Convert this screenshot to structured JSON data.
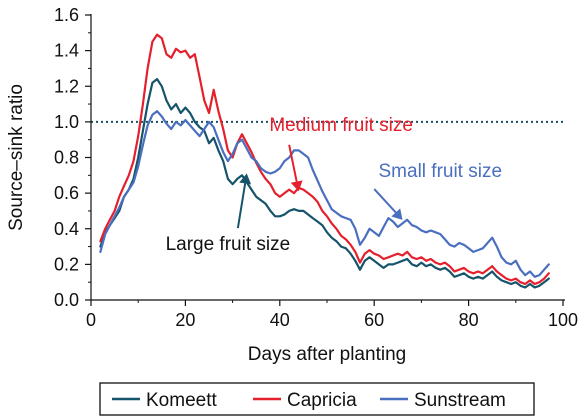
{
  "chart_data": {
    "type": "line",
    "xlabel": "Days after planting",
    "ylabel": "Source–sink ratio",
    "xlim": [
      0,
      100
    ],
    "ylim": [
      0,
      1.6
    ],
    "xticks": [
      "0",
      "20",
      "40",
      "60",
      "80",
      "100"
    ],
    "yticks": [
      "0.0",
      "0.2",
      "0.4",
      "0.6",
      "0.8",
      "1.0",
      "1.2",
      "1.4",
      "1.6"
    ],
    "reference_line": {
      "y": 1.0,
      "style": "dotted",
      "color": "#1a4f66"
    },
    "series": [
      {
        "name": "Komeett",
        "color": "#15546a",
        "points": [
          [
            2,
            0.3
          ],
          [
            3,
            0.38
          ],
          [
            4,
            0.42
          ],
          [
            5,
            0.46
          ],
          [
            6,
            0.5
          ],
          [
            7,
            0.58
          ],
          [
            8,
            0.62
          ],
          [
            9,
            0.68
          ],
          [
            10,
            0.8
          ],
          [
            11,
            0.95
          ],
          [
            12,
            1.1
          ],
          [
            13,
            1.22
          ],
          [
            14,
            1.24
          ],
          [
            15,
            1.2
          ],
          [
            16,
            1.12
          ],
          [
            17,
            1.07
          ],
          [
            18,
            1.1
          ],
          [
            19,
            1.05
          ],
          [
            20,
            1.08
          ],
          [
            21,
            1.05
          ],
          [
            22,
            1.0
          ],
          [
            23,
            0.97
          ],
          [
            24,
            0.95
          ],
          [
            25,
            0.88
          ],
          [
            26,
            0.91
          ],
          [
            27,
            0.84
          ],
          [
            28,
            0.78
          ],
          [
            29,
            0.68
          ],
          [
            30,
            0.65
          ],
          [
            31,
            0.68
          ],
          [
            32,
            0.7
          ],
          [
            33,
            0.66
          ],
          [
            34,
            0.62
          ],
          [
            35,
            0.58
          ],
          [
            36,
            0.56
          ],
          [
            37,
            0.54
          ],
          [
            38,
            0.5
          ],
          [
            39,
            0.47
          ],
          [
            40,
            0.47
          ],
          [
            41,
            0.48
          ],
          [
            42,
            0.5
          ],
          [
            43,
            0.51
          ],
          [
            44,
            0.5
          ],
          [
            45,
            0.5
          ],
          [
            46,
            0.48
          ],
          [
            47,
            0.46
          ],
          [
            48,
            0.44
          ],
          [
            49,
            0.42
          ],
          [
            50,
            0.38
          ],
          [
            51,
            0.35
          ],
          [
            52,
            0.33
          ],
          [
            53,
            0.3
          ],
          [
            54,
            0.29
          ],
          [
            55,
            0.26
          ],
          [
            56,
            0.22
          ],
          [
            57,
            0.17
          ],
          [
            58,
            0.22
          ],
          [
            59,
            0.24
          ],
          [
            60,
            0.22
          ],
          [
            61,
            0.2
          ],
          [
            62,
            0.18
          ],
          [
            63,
            0.2
          ],
          [
            64,
            0.2
          ],
          [
            65,
            0.21
          ],
          [
            66,
            0.22
          ],
          [
            67,
            0.23
          ],
          [
            68,
            0.2
          ],
          [
            69,
            0.19
          ],
          [
            70,
            0.21
          ],
          [
            71,
            0.19
          ],
          [
            72,
            0.2
          ],
          [
            73,
            0.18
          ],
          [
            74,
            0.17
          ],
          [
            75,
            0.18
          ],
          [
            76,
            0.16
          ],
          [
            77,
            0.13
          ],
          [
            78,
            0.14
          ],
          [
            79,
            0.15
          ],
          [
            80,
            0.13
          ],
          [
            81,
            0.12
          ],
          [
            82,
            0.13
          ],
          [
            83,
            0.12
          ],
          [
            84,
            0.14
          ],
          [
            85,
            0.16
          ],
          [
            86,
            0.13
          ],
          [
            87,
            0.11
          ],
          [
            88,
            0.1
          ],
          [
            89,
            0.09
          ],
          [
            90,
            0.1
          ],
          [
            91,
            0.08
          ],
          [
            92,
            0.07
          ],
          [
            93,
            0.09
          ],
          [
            94,
            0.07
          ],
          [
            95,
            0.08
          ],
          [
            96,
            0.1
          ],
          [
            97,
            0.12
          ]
        ]
      },
      {
        "name": "Capricia",
        "color": "#e5202d",
        "points": [
          [
            2,
            0.33
          ],
          [
            3,
            0.4
          ],
          [
            4,
            0.45
          ],
          [
            5,
            0.5
          ],
          [
            6,
            0.58
          ],
          [
            7,
            0.64
          ],
          [
            8,
            0.7
          ],
          [
            9,
            0.78
          ],
          [
            10,
            0.92
          ],
          [
            11,
            1.1
          ],
          [
            12,
            1.3
          ],
          [
            13,
            1.45
          ],
          [
            14,
            1.49
          ],
          [
            15,
            1.47
          ],
          [
            16,
            1.38
          ],
          [
            17,
            1.36
          ],
          [
            18,
            1.41
          ],
          [
            19,
            1.39
          ],
          [
            20,
            1.4
          ],
          [
            21,
            1.36
          ],
          [
            22,
            1.38
          ],
          [
            23,
            1.25
          ],
          [
            24,
            1.12
          ],
          [
            25,
            1.05
          ],
          [
            26,
            1.18
          ],
          [
            27,
            1.06
          ],
          [
            28,
            0.96
          ],
          [
            29,
            0.84
          ],
          [
            30,
            0.8
          ],
          [
            31,
            0.88
          ],
          [
            32,
            0.93
          ],
          [
            33,
            0.88
          ],
          [
            34,
            0.83
          ],
          [
            35,
            0.77
          ],
          [
            36,
            0.72
          ],
          [
            37,
            0.68
          ],
          [
            38,
            0.65
          ],
          [
            39,
            0.6
          ],
          [
            40,
            0.58
          ],
          [
            41,
            0.6
          ],
          [
            42,
            0.62
          ],
          [
            43,
            0.6
          ],
          [
            44,
            0.63
          ],
          [
            45,
            0.62
          ],
          [
            46,
            0.6
          ],
          [
            47,
            0.58
          ],
          [
            48,
            0.55
          ],
          [
            49,
            0.5
          ],
          [
            50,
            0.47
          ],
          [
            51,
            0.43
          ],
          [
            52,
            0.4
          ],
          [
            53,
            0.36
          ],
          [
            54,
            0.34
          ],
          [
            55,
            0.31
          ],
          [
            56,
            0.27
          ],
          [
            57,
            0.21
          ],
          [
            58,
            0.26
          ],
          [
            59,
            0.28
          ],
          [
            60,
            0.26
          ],
          [
            61,
            0.25
          ],
          [
            62,
            0.23
          ],
          [
            63,
            0.24
          ],
          [
            64,
            0.25
          ],
          [
            65,
            0.26
          ],
          [
            66,
            0.25
          ],
          [
            67,
            0.27
          ],
          [
            68,
            0.24
          ],
          [
            69,
            0.23
          ],
          [
            70,
            0.24
          ],
          [
            71,
            0.22
          ],
          [
            72,
            0.23
          ],
          [
            73,
            0.21
          ],
          [
            74,
            0.2
          ],
          [
            75,
            0.21
          ],
          [
            76,
            0.19
          ],
          [
            77,
            0.16
          ],
          [
            78,
            0.17
          ],
          [
            79,
            0.18
          ],
          [
            80,
            0.16
          ],
          [
            81,
            0.15
          ],
          [
            82,
            0.16
          ],
          [
            83,
            0.15
          ],
          [
            84,
            0.17
          ],
          [
            85,
            0.19
          ],
          [
            86,
            0.16
          ],
          [
            87,
            0.14
          ],
          [
            88,
            0.12
          ],
          [
            89,
            0.11
          ],
          [
            90,
            0.12
          ],
          [
            91,
            0.1
          ],
          [
            92,
            0.09
          ],
          [
            93,
            0.11
          ],
          [
            94,
            0.09
          ],
          [
            95,
            0.1
          ],
          [
            96,
            0.12
          ],
          [
            97,
            0.15
          ]
        ]
      },
      {
        "name": "Sunstream",
        "color": "#4a6fbf",
        "points": [
          [
            2,
            0.27
          ],
          [
            3,
            0.37
          ],
          [
            4,
            0.42
          ],
          [
            5,
            0.47
          ],
          [
            6,
            0.52
          ],
          [
            7,
            0.58
          ],
          [
            8,
            0.62
          ],
          [
            9,
            0.66
          ],
          [
            10,
            0.75
          ],
          [
            11,
            0.87
          ],
          [
            12,
            0.98
          ],
          [
            13,
            1.04
          ],
          [
            14,
            1.06
          ],
          [
            15,
            1.03
          ],
          [
            16,
            0.99
          ],
          [
            17,
            0.96
          ],
          [
            18,
            1.0
          ],
          [
            19,
            0.98
          ],
          [
            20,
            1.01
          ],
          [
            21,
            0.98
          ],
          [
            22,
            0.95
          ],
          [
            23,
            0.92
          ],
          [
            24,
            0.96
          ],
          [
            25,
            1.0
          ],
          [
            26,
            0.97
          ],
          [
            27,
            0.9
          ],
          [
            28,
            0.83
          ],
          [
            29,
            0.78
          ],
          [
            30,
            0.82
          ],
          [
            31,
            0.88
          ],
          [
            32,
            0.9
          ],
          [
            33,
            0.85
          ],
          [
            34,
            0.8
          ],
          [
            35,
            0.78
          ],
          [
            36,
            0.74
          ],
          [
            37,
            0.72
          ],
          [
            38,
            0.71
          ],
          [
            39,
            0.72
          ],
          [
            40,
            0.74
          ],
          [
            41,
            0.78
          ],
          [
            42,
            0.8
          ],
          [
            43,
            0.84
          ],
          [
            44,
            0.84
          ],
          [
            45,
            0.82
          ],
          [
            46,
            0.8
          ],
          [
            47,
            0.73
          ],
          [
            48,
            0.67
          ],
          [
            49,
            0.61
          ],
          [
            50,
            0.56
          ],
          [
            51,
            0.51
          ],
          [
            52,
            0.49
          ],
          [
            53,
            0.47
          ],
          [
            54,
            0.46
          ],
          [
            55,
            0.45
          ],
          [
            56,
            0.4
          ],
          [
            57,
            0.31
          ],
          [
            58,
            0.35
          ],
          [
            59,
            0.4
          ],
          [
            60,
            0.38
          ],
          [
            61,
            0.36
          ],
          [
            62,
            0.41
          ],
          [
            63,
            0.46
          ],
          [
            64,
            0.44
          ],
          [
            65,
            0.41
          ],
          [
            66,
            0.43
          ],
          [
            67,
            0.45
          ],
          [
            68,
            0.42
          ],
          [
            69,
            0.41
          ],
          [
            70,
            0.39
          ],
          [
            71,
            0.38
          ],
          [
            72,
            0.39
          ],
          [
            73,
            0.38
          ],
          [
            74,
            0.37
          ],
          [
            75,
            0.34
          ],
          [
            76,
            0.31
          ],
          [
            77,
            0.3
          ],
          [
            78,
            0.32
          ],
          [
            79,
            0.31
          ],
          [
            80,
            0.29
          ],
          [
            81,
            0.27
          ],
          [
            82,
            0.28
          ],
          [
            83,
            0.29
          ],
          [
            84,
            0.32
          ],
          [
            85,
            0.35
          ],
          [
            86,
            0.3
          ],
          [
            87,
            0.24
          ],
          [
            88,
            0.21
          ],
          [
            89,
            0.2
          ],
          [
            90,
            0.22
          ],
          [
            91,
            0.17
          ],
          [
            92,
            0.14
          ],
          [
            93,
            0.16
          ],
          [
            94,
            0.13
          ],
          [
            95,
            0.14
          ],
          [
            96,
            0.17
          ],
          [
            97,
            0.2
          ]
        ]
      }
    ],
    "annotations": [
      {
        "text": "Medium fruit size",
        "color": "#e5202d",
        "tx": 53,
        "ty": 0.95,
        "ax": 44,
        "ay": 0.61
      },
      {
        "text": "Small fruit size",
        "color": "#4a6fbf",
        "tx": 74,
        "ty": 0.69,
        "ax": 66,
        "ay": 0.45
      },
      {
        "text": "Large fruit size",
        "color": "#111111",
        "tx": 29,
        "ty": 0.28,
        "ax": 33,
        "ay": 0.71
      }
    ],
    "legend": {
      "position": "bottom",
      "entries": [
        "Komeett",
        "Capricia",
        "Sunstream"
      ]
    }
  }
}
